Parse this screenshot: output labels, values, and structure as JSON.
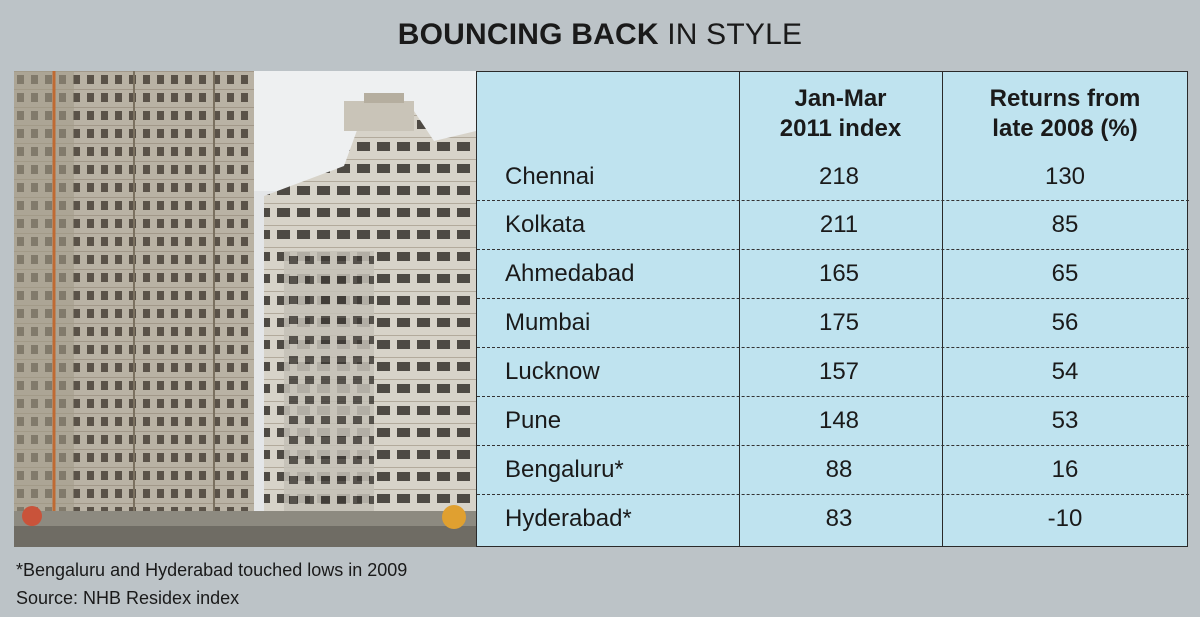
{
  "title": {
    "bold": "BOUNCING BACK",
    "light": "IN STYLE"
  },
  "chart_data": {
    "type": "table",
    "columns": [
      "",
      "Jan-Mar 2011 index",
      "Returns from late 2008 (%)"
    ],
    "column_header_lines": [
      [
        "Jan-Mar",
        "2011 index"
      ],
      [
        "Returns from",
        "late 2008 (%)"
      ]
    ],
    "rows": [
      {
        "city": "Chennai",
        "index": "218",
        "returns": "130"
      },
      {
        "city": "Kolkata",
        "index": "211",
        "returns": "85"
      },
      {
        "city": "Ahmedabad",
        "index": "165",
        "returns": "65"
      },
      {
        "city": "Mumbai",
        "index": "175",
        "returns": "56"
      },
      {
        "city": "Lucknow",
        "index": "157",
        "returns": "54"
      },
      {
        "city": "Pune",
        "index": "148",
        "returns": "53"
      },
      {
        "city": "Bengaluru*",
        "index": "88",
        "returns": "16"
      },
      {
        "city": "Hyderabad*",
        "index": "83",
        "returns": "-10"
      }
    ]
  },
  "footnotes": {
    "note": "*Bengaluru and Hyderabad touched lows in 2009",
    "source": "Source: NHB Residex index"
  },
  "colors": {
    "background": "#bcc3c7",
    "table_fill": "#bfe3ef",
    "rule": "#2a2a2a"
  }
}
